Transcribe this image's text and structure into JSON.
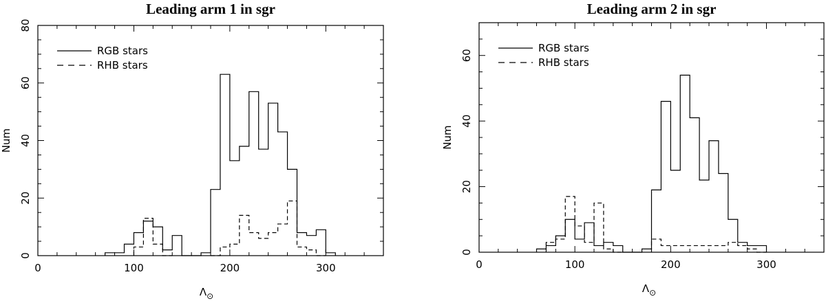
{
  "chart_data": [
    {
      "type": "histogram",
      "title": "Leading arm 1 in sgr",
      "xlabel": "Λ",
      "xlabel_subscript": "⊙",
      "ylabel": "Num",
      "xlim": [
        0,
        360
      ],
      "ylim": [
        0,
        80
      ],
      "xticks": [
        0,
        100,
        200,
        300
      ],
      "yticks": [
        0,
        20,
        40,
        60,
        80
      ],
      "bin_width": 10,
      "legend_position": "top-left",
      "series": [
        {
          "name": "RGB stars",
          "style": "solid",
          "bins": [
            [
              70,
              1
            ],
            [
              80,
              1
            ],
            [
              90,
              4
            ],
            [
              100,
              8
            ],
            [
              110,
              12
            ],
            [
              120,
              10
            ],
            [
              130,
              2
            ],
            [
              140,
              7
            ],
            [
              150,
              0
            ],
            [
              160,
              0
            ],
            [
              170,
              1
            ],
            [
              180,
              23
            ],
            [
              190,
              63
            ],
            [
              200,
              33
            ],
            [
              210,
              38
            ],
            [
              220,
              57
            ],
            [
              230,
              37
            ],
            [
              240,
              53
            ],
            [
              250,
              43
            ],
            [
              260,
              30
            ],
            [
              270,
              8
            ],
            [
              280,
              7
            ],
            [
              290,
              9
            ],
            [
              300,
              1
            ]
          ]
        },
        {
          "name": "RHB stars",
          "style": "dashed",
          "bins": [
            [
              100,
              3
            ],
            [
              110,
              13
            ],
            [
              120,
              4
            ],
            [
              130,
              0
            ],
            [
              180,
              0
            ],
            [
              190,
              3
            ],
            [
              200,
              4
            ],
            [
              210,
              14
            ],
            [
              220,
              8
            ],
            [
              230,
              6
            ],
            [
              240,
              8
            ],
            [
              250,
              11
            ],
            [
              260,
              19
            ],
            [
              270,
              3
            ],
            [
              280,
              2
            ],
            [
              290,
              0
            ]
          ]
        }
      ]
    },
    {
      "type": "histogram",
      "title": "Leading arm 2 in sgr",
      "xlabel": "Λ",
      "xlabel_subscript": "⊙",
      "ylabel": "Num",
      "xlim": [
        0,
        360
      ],
      "ylim": [
        0,
        70
      ],
      "xticks": [
        0,
        100,
        200,
        300
      ],
      "yticks": [
        0,
        20,
        40,
        60
      ],
      "bin_width": 10,
      "legend_position": "top-left",
      "series": [
        {
          "name": "RGB stars",
          "style": "solid",
          "bins": [
            [
              60,
              1
            ],
            [
              70,
              2
            ],
            [
              80,
              5
            ],
            [
              90,
              10
            ],
            [
              100,
              4
            ],
            [
              110,
              9
            ],
            [
              120,
              2
            ],
            [
              130,
              3
            ],
            [
              140,
              2
            ],
            [
              150,
              0
            ],
            [
              160,
              0
            ],
            [
              170,
              1
            ],
            [
              180,
              19
            ],
            [
              190,
              46
            ],
            [
              200,
              25
            ],
            [
              210,
              54
            ],
            [
              220,
              41
            ],
            [
              230,
              22
            ],
            [
              240,
              34
            ],
            [
              250,
              24
            ],
            [
              260,
              10
            ],
            [
              270,
              3
            ],
            [
              280,
              2
            ],
            [
              290,
              2
            ]
          ]
        },
        {
          "name": "RHB stars",
          "style": "dashed",
          "bins": [
            [
              70,
              3
            ],
            [
              80,
              4
            ],
            [
              90,
              17
            ],
            [
              100,
              8
            ],
            [
              110,
              3
            ],
            [
              120,
              15
            ],
            [
              130,
              1
            ],
            [
              140,
              0
            ],
            [
              180,
              4
            ],
            [
              190,
              2
            ],
            [
              200,
              2
            ],
            [
              210,
              2
            ],
            [
              220,
              2
            ],
            [
              230,
              2
            ],
            [
              240,
              2
            ],
            [
              250,
              2
            ],
            [
              260,
              3
            ],
            [
              270,
              2
            ],
            [
              280,
              1
            ],
            [
              290,
              0
            ]
          ]
        }
      ]
    }
  ]
}
